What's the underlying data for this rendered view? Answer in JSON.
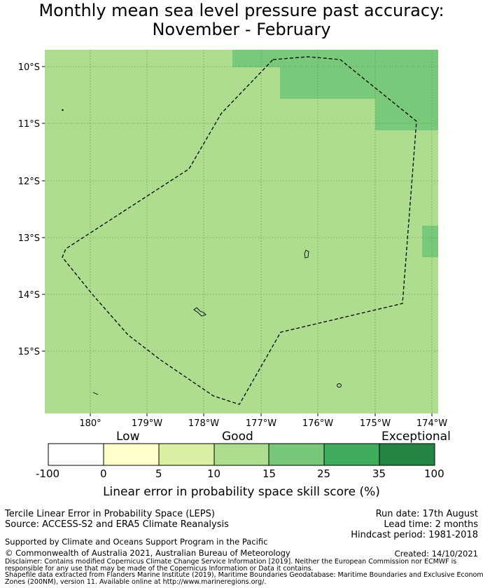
{
  "title": {
    "line1": "Monthly mean sea level pressure past accuracy:",
    "line2": "November - February"
  },
  "map": {
    "lat_ticks": [
      "10°S",
      "11°S",
      "12°S",
      "13°S",
      "14°S",
      "15°S"
    ],
    "lon_ticks": [
      "180°",
      "179°W",
      "178°W",
      "177°W",
      "176°W",
      "175°W",
      "174°W"
    ],
    "colors": {
      "good": "#aedd8f",
      "good_plus": "#79c97a",
      "border": "#000000",
      "grid": "#6a8f55"
    }
  },
  "colorbar": {
    "categories": [
      "Low",
      "Good",
      "Exceptional"
    ],
    "ticks": [
      "-100",
      "0",
      "5",
      "10",
      "15",
      "25",
      "35",
      "100"
    ],
    "colors": [
      "#ffffff",
      "#ffffcc",
      "#d9f0a3",
      "#addd8e",
      "#78c679",
      "#41ab5d",
      "#238443"
    ],
    "label": "Linear error in probability space skill score (%)"
  },
  "info": {
    "product": "Tercile Linear Error in Probability Space (LEPS)",
    "source": "Source: ACCESS-S2 and ERA5 Climate Reanalysis",
    "run_date": "Run date: 17th August",
    "lead_time": "Lead time: 2 months",
    "hindcast": "Hindcast period: 1981-2018",
    "support": "Supported by Climate and Oceans Support Program in the Pacific",
    "copyright": "© Commonwealth of Australia 2021, Australian Bureau of Meteorology",
    "created": "Created: 14/10/2021",
    "disclaimer1": "Disclaimer: Contains modified Copernicus Climate Change Service Information [2019]. Neither the European Commission nor ECMWF is",
    "disclaimer2": "responsible for any use that may be made of the Copernicus Information or Data it contains.",
    "disclaimer3": "Shapefile data extracted from Flanders Marine Institute (2019), Maritime Boundaries Geodatabase: Maritime Boundaries and Exclusive Economic",
    "disclaimer4": "Zones (200NM), version 11. Available online at http://www.marineregions.org/."
  }
}
